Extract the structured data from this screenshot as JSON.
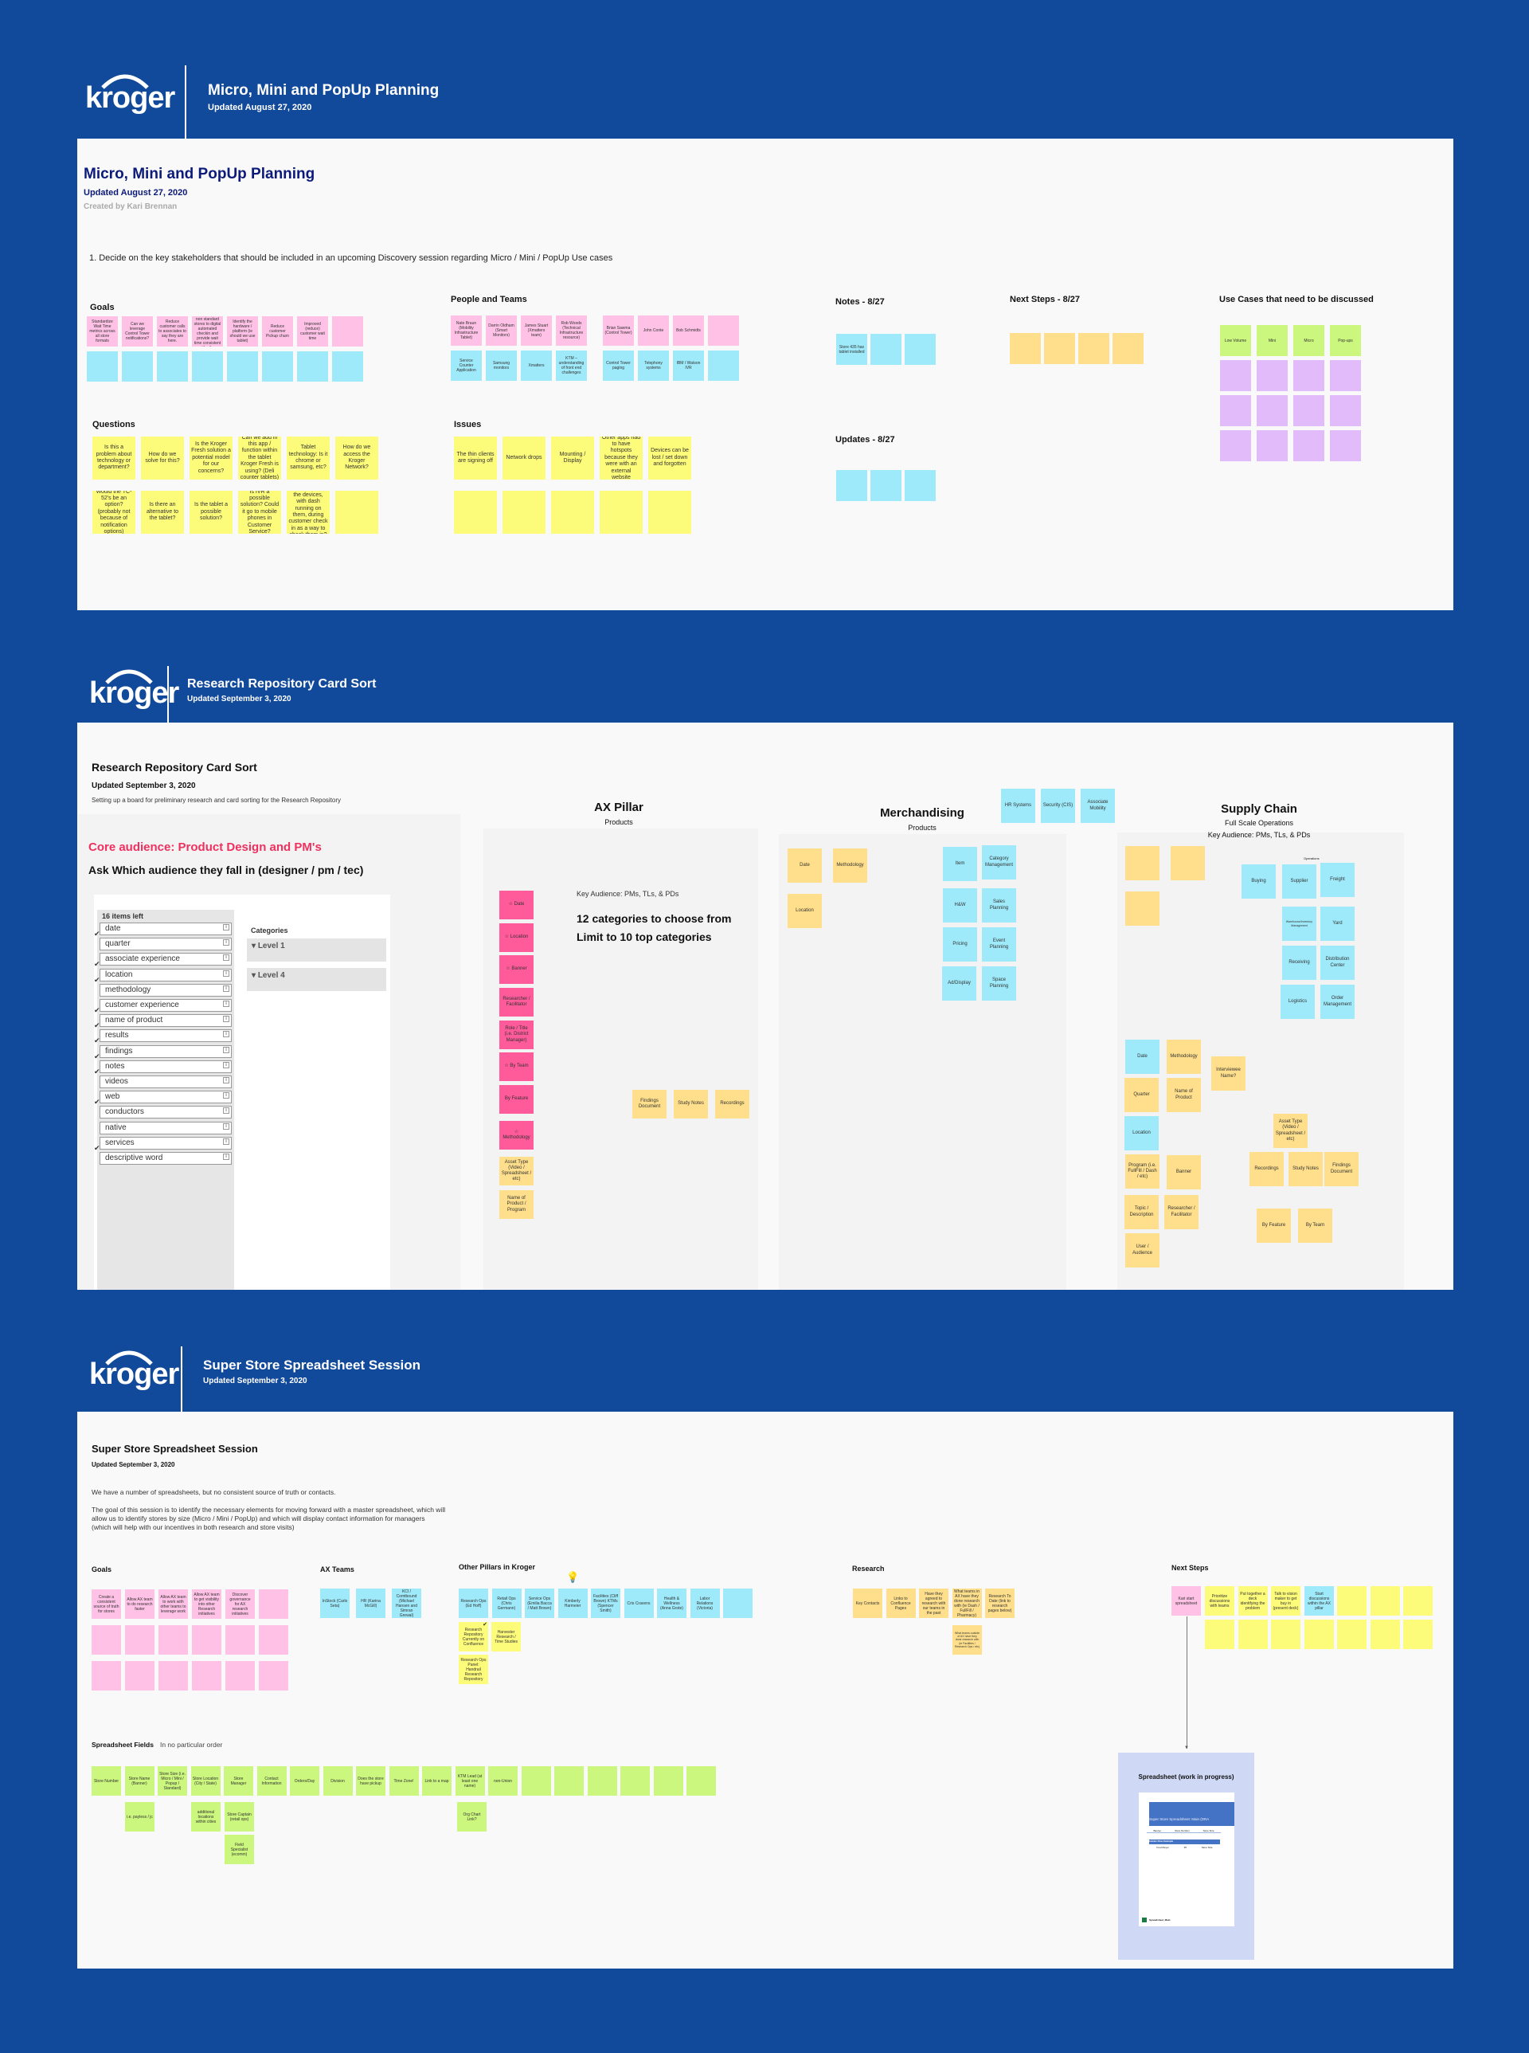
{
  "colors": {
    "pink": "#ffc1e6",
    "blue": "#9eeafa",
    "yellow": "#fdfb7a",
    "orange": "#ffdf8b",
    "green": "#cbf77e",
    "purple": "#e2bbfb",
    "hotpink": "#ff5a9a",
    "background": "#124a9b",
    "panel": "#f9f9f9",
    "accent_red": "#f0305f",
    "title_navy": "#0c1a7a"
  },
  "logo_text": "kroger",
  "board1": {
    "header": {
      "title": "Micro, Mini and PopUp Planning",
      "updated": "Updated August 27, 2020"
    },
    "title": "Micro, Mini and PopUp Planning",
    "updated": "Updated August 27, 2020",
    "created_by": "Created by Kari Brennan",
    "instruction": "1. Decide on the key stakeholders that should be included in an upcoming  Discovery session regarding Micro / Mini / PopUp Use cases",
    "goals": {
      "label": "Goals",
      "rows": [
        {
          "color": "pink",
          "items": [
            "Standardize Wait Time metrics across all store formats",
            "Can we leverage Control Tower notifications?",
            "Reduce customer calls to associates to say they are here.",
            "Convert all of the remaining non standard stores to digital automated checkin and provide wait time consistent with other stores.",
            "Identify the hardware / platform (ie should we use tablet)",
            "Reduce customer Pickup churn",
            "Improved (reduce) customer wait time",
            ""
          ]
        },
        {
          "color": "blue",
          "items": [
            "",
            "",
            "",
            "",
            "",
            "",
            "",
            ""
          ]
        }
      ]
    },
    "people": {
      "label": "People and Teams",
      "rows_a": [
        {
          "color": "pink",
          "items": [
            "Nate Braun (Mobility Infrastructure Tablet)",
            "Darrin Oldham (Smart Monitors)",
            "James Stuart (Xmatters team)",
            "Rob Woods (Technical Infrastructure resource)"
          ]
        },
        {
          "color": "blue",
          "items": [
            "Service Counter Application",
            "Samsung monitors",
            "Xmatters",
            "KTM – understanding of front end challenges"
          ]
        }
      ],
      "rows_b": [
        {
          "color": "pink",
          "items": [
            "Brian Sawma (Control Tower)",
            "John Conte",
            "Bob Schmidts",
            ""
          ]
        },
        {
          "color": "blue",
          "items": [
            "Control Tower paging",
            "Telephony systems",
            "IBM / Watson IVR",
            ""
          ]
        }
      ]
    },
    "questions": {
      "label": "Questions",
      "rows": [
        {
          "color": "yellow",
          "items": [
            "Is this a problem about technology or department?",
            "How do we solve for this?",
            "Is the Kroger Fresh solution a potential model for our concerns?",
            "Can we add in this app / function within the tablet Kroger Fresh is using? (Deli counter tablets)",
            "Tablet technology:  Is it chrome or samsung, etc?",
            "How do we access the Kroger Network?"
          ]
        },
        {
          "color": "yellow",
          "items": [
            "Would the TC-52's be an option? (probably not because of notification options)",
            "Is there an alternative to the tablet?",
            "Is the tablet a possible solution?",
            "Is IVR a possible solution?  Could it go to mobile phones in Customer Service?",
            "Could we have the devices, with dash running on them, during customer check in as a way to check them in?",
            ""
          ]
        }
      ]
    },
    "issues": {
      "label": "Issues",
      "rows": [
        {
          "color": "yellow",
          "items": [
            "The thin clients are signing off",
            "Network drops",
            "Mounting / Display",
            "Other apps had to have hotspots because they were with an external website",
            "Devices can be lost / set down and forgotten"
          ]
        },
        {
          "color": "yellow",
          "items": [
            "",
            "",
            "",
            "",
            ""
          ]
        }
      ]
    },
    "notes": {
      "label": "Notes - 8/27",
      "rows": [
        {
          "color": "blue",
          "items": [
            "Store 435 has tablet installed",
            "",
            ""
          ]
        }
      ]
    },
    "updates": {
      "label": "Updates - 8/27",
      "rows": [
        {
          "color": "blue",
          "items": [
            "",
            "",
            ""
          ]
        }
      ]
    },
    "next_steps": {
      "label": "Next Steps - 8/27",
      "rows": [
        {
          "color": "orange",
          "items": [
            "",
            "",
            "",
            ""
          ]
        }
      ]
    },
    "use_cases": {
      "label": "Use Cases that need to be discussed",
      "rows": [
        {
          "color": "green",
          "items": [
            "Low Volume",
            "Mini",
            "Micro",
            "Pop-ups"
          ]
        },
        {
          "color": "purple",
          "items": [
            "",
            "",
            "",
            ""
          ]
        },
        {
          "color": "purple",
          "items": [
            "",
            "",
            "",
            ""
          ]
        },
        {
          "color": "purple",
          "items": [
            "",
            "",
            "",
            ""
          ]
        }
      ]
    }
  },
  "board2": {
    "header": {
      "title": "Research Repository Card Sort",
      "updated": "Updated September 3, 2020"
    },
    "title": "Research Repository Card Sort",
    "updated": "Updated September 3, 2020",
    "description": "Setting up a board for preliminary research and card sorting for the Research Repository",
    "core_audience": "Core audience:  Product Design and PM's",
    "ask": "Ask Which audience they fall in (designer / pm  / tec)",
    "card_sort": {
      "items_left": "16 items left",
      "categories_label": "Categories",
      "info_glyph": "i",
      "categories": [
        "Level 1",
        "Level 4"
      ],
      "items": [
        {
          "label": "date",
          "checked": true
        },
        {
          "label": "quarter",
          "checked": false
        },
        {
          "label": "associate experience",
          "checked": true
        },
        {
          "label": "location",
          "checked": true
        },
        {
          "label": "methodology",
          "checked": false
        },
        {
          "label": "customer experience",
          "checked": true
        },
        {
          "label": "name of product",
          "checked": true
        },
        {
          "label": "results",
          "checked": true
        },
        {
          "label": "findings",
          "checked": true
        },
        {
          "label": "notes",
          "checked": true
        },
        {
          "label": "videos",
          "checked": false
        },
        {
          "label": "web",
          "checked": true
        },
        {
          "label": "conductors",
          "checked": false
        },
        {
          "label": "native",
          "checked": false
        },
        {
          "label": "services",
          "checked": true
        },
        {
          "label": "descriptive word",
          "checked": false
        }
      ]
    },
    "ax": {
      "title": "AX Pillar",
      "subtitle": "Products",
      "key_audience": "Key Audience: PMs, TLs, & PDs",
      "headline1": "12 categories to choose from",
      "headline2": "Limit to 10 top categories",
      "pink_cards": [
        "☆  Date",
        "☆ Location",
        "☆  Banner",
        "Researcher / Facilitator",
        "Role / Title (i.e. District Manager)",
        "☆ By Team",
        "By Feature",
        "☆ Methodology"
      ],
      "yellow_cards": [
        "Asset Type (Video / Spreadsheet / etc)",
        "Name of Product / Program"
      ],
      "doc_cards": [
        "Findings Document",
        "Study Notes",
        "Recordings"
      ]
    },
    "merch": {
      "title": "Merchandising",
      "subtitle": "Products",
      "top_cards": [
        "HR Systems",
        "Security (CIS)",
        "Associate Mobility"
      ],
      "yellow_cards": [
        "Date",
        "Methodology",
        "Location"
      ],
      "blue_cards": [
        "Item",
        "Category Management",
        "H&W",
        "Sales Planning",
        "Pricing",
        "Event Planning",
        "Ad/Display",
        "Space Planning"
      ]
    },
    "supply": {
      "title": "Supply Chain",
      "subtitle": "Full Scale Operations",
      "key_audience": "Key Audience: PMs, TLs, & PDs",
      "operations_label": "Operations",
      "ops_cards": [
        "Buying",
        "Supplier",
        "Freight",
        "Warehouse/Inventory Management",
        "Yard",
        "Receiving",
        "Distribution Center",
        "Logistics",
        "Order Management"
      ],
      "cards": [
        "Date",
        "Methodology",
        "Interviewee Name?",
        "Quarter",
        "Name of Product",
        "Location",
        "Program (i.e. FullFill / Dash / etc)",
        "Banner",
        "Topic / Description",
        "Researcher / Facilitator",
        "User / Audience",
        "Asset Type (Video / Spreadsheet / etc)",
        "Recordings",
        "Study Notes",
        "Findings Document",
        "By Feature",
        "By Team"
      ]
    }
  },
  "board3": {
    "header": {
      "title": "Super Store Spreadsheet Session",
      "updated": "Updated September 3, 2020"
    },
    "title": "Super Store Spreadsheet Session",
    "updated": "Updated September 3, 2020",
    "para1": "We have a number of spreadsheets, but no consistent source of truth or contacts.",
    "para2": "The goal of this session is to identify the necessary elements for moving forward with a master spreadsheet, which will allow us to identify stores by size (Micro / Mini / PopUp) and which will display contact information for managers (which will help with our incentives in both research and store visits)",
    "goals": {
      "label": "Goals",
      "rows": [
        {
          "color": "pink",
          "items": [
            "Create a consistent source of truth for stores",
            "Allow AX team to do research faster",
            "Allow AX team to work with other teams to leverage work",
            "Allow AX team to get visibility into other Research initiatives",
            "Discover governance for AX research initiatives",
            ""
          ]
        },
        {
          "color": "pink",
          "items": [
            "",
            "",
            "",
            "",
            "",
            ""
          ]
        },
        {
          "color": "pink",
          "items": [
            "",
            "",
            "",
            "",
            "",
            ""
          ]
        }
      ]
    },
    "ax_teams": {
      "label": "AX Teams",
      "rows": [
        {
          "color": "blue",
          "items": [
            "InStock (Carlo Seta)",
            "HR (Karina McGill)",
            "KCI / Comtbound (Michael Hansen and Simran Grewal)"
          ]
        }
      ]
    },
    "pillars": {
      "label": "Other Pillars in Kroger",
      "rows": [
        {
          "color": "blue",
          "items": [
            "Research Ops (Ed Hoff)",
            "Retail Ops (Chris Germann)",
            "Service Ops (Emilia Bacca / Matt Brown)",
            "Kimberly Harmeier",
            "Facilities (Cliff Brown) KTMs (Spencer Smith)",
            "Cris Cravens",
            "Health & Wellness (Anna Grote)",
            "Labor Relations (Victoria)",
            ""
          ]
        }
      ],
      "yellow_cards": [
        "Research Repository Currently on Confluence",
        "Harvester Research / Time Studies",
        "Research Ops Panel: Handrail Research Repository"
      ],
      "check_glyph": "✔"
    },
    "research": {
      "label": "Research",
      "rows": [
        {
          "color": "orange",
          "items": [
            "Key Contacts",
            "Links to Confluence Pages",
            "Have they agreed to research with our teams in the past",
            "What teams in AX have they done research with (ie Dash / FullFill / Pharmacy)",
            "Research To Date (link to research pages below)"
          ]
        }
      ],
      "extra": "What teams outside of AX have they done research with (ie Facilities / Research Ops / etc)"
    },
    "next_steps": {
      "label": "Next Steps",
      "rows": [
        {
          "color": "pink",
          "items": [
            "Kari start spreadsheet"
          ]
        }
      ],
      "rows_b": [
        {
          "color": "yellow",
          "items": [
            "Prioritize discussions with teams",
            "Put together a deck identifying the problem",
            "Talk to vision maker to get buy in (present deck)"
          ]
        }
      ],
      "rows_c": [
        {
          "color": "blue",
          "items": [
            "Start discussions within the AX pillar"
          ]
        }
      ],
      "rows_d": [
        {
          "color": "yellow",
          "items": [
            "",
            "",
            ""
          ]
        }
      ],
      "rows_e": [
        {
          "color": "yellow",
          "items": [
            "",
            "",
            "",
            "",
            "",
            "",
            ""
          ]
        }
      ]
    },
    "fields": {
      "label": "Spreadsheet Fields",
      "note": "In no particular order",
      "rows": [
        {
          "color": "green",
          "items": [
            "Store Number",
            "Store Name (Banner)",
            "Store Size (i.e. Micro / Mini / Popup / Standard)",
            "Store Location (City / State)",
            "Store Manager",
            "Contact Information",
            "Orders/Day",
            "Division",
            "Does the store have pickup",
            "Time Zone!",
            "Link to a map",
            "KTM Lead (at least one name)",
            "non-Union",
            "",
            "",
            "",
            "",
            "",
            ""
          ]
        }
      ],
      "sub_cards": [
        "i.e. payless / jc",
        "additional locations within cities",
        "Store Captain (retail ops)",
        "Org Chart Link?",
        "Field Specialist (ecomm)"
      ]
    },
    "spreadsheet": {
      "title": "Spreadsheet (work in progress)",
      "doc_title": "Super Store Spreadsheet:  Main (DRA",
      "columns": [
        "Banner",
        "Store Number",
        "Store Size"
      ],
      "example_label": "Insider Row Example",
      "example_row": [
        "Fred Meyer",
        "35",
        "Store Size"
      ],
      "file_name": "Spreadsheet_Main"
    }
  }
}
